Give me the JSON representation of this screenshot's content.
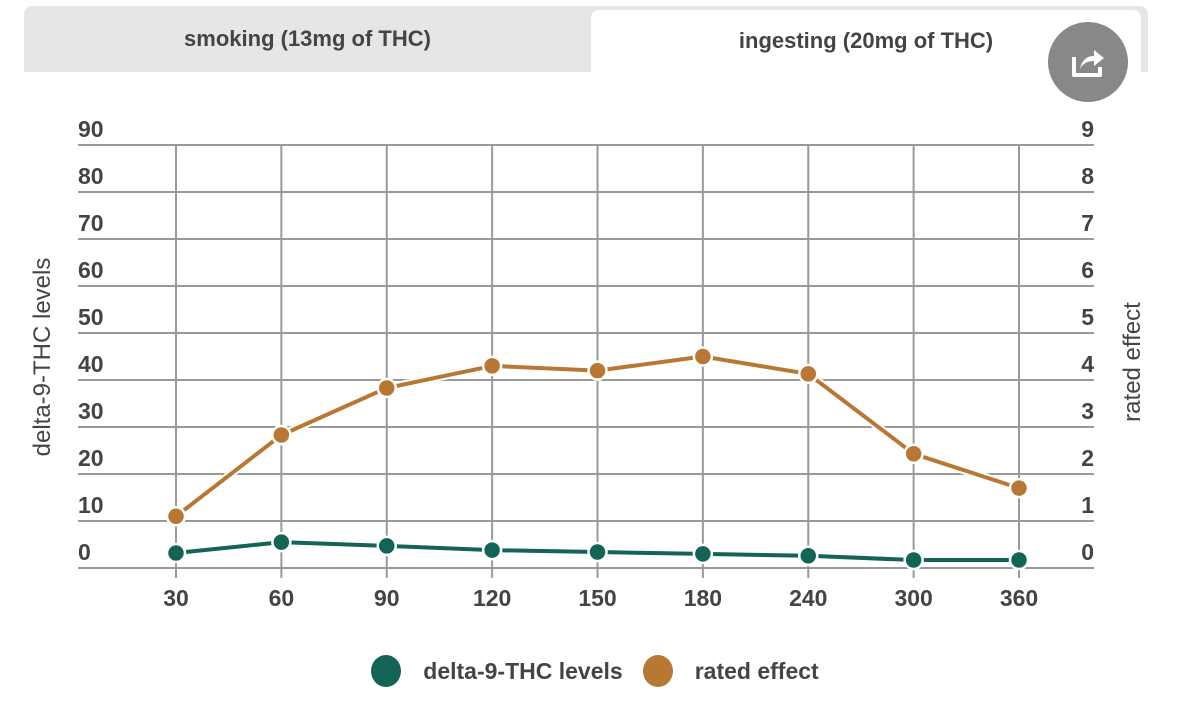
{
  "tabs": [
    {
      "label": "smoking (13mg of THC)",
      "active": false
    },
    {
      "label": "ingesting (20mg of THC)",
      "active": true
    }
  ],
  "share_button": {
    "icon": "share-icon"
  },
  "colors": {
    "thc": "#136357",
    "effect": "#b87733",
    "grid": "#999999",
    "tab_bg": "#e6e6e6",
    "share_bg": "#888888"
  },
  "chart_data": {
    "type": "line",
    "x": [
      30,
      60,
      90,
      120,
      150,
      180,
      240,
      300,
      360
    ],
    "x_tick_labels": [
      "30",
      "60",
      "90",
      "120",
      "150",
      "180",
      "240",
      "300",
      "360"
    ],
    "xlabel": "",
    "y_left": {
      "label": "delta-9-THC levels",
      "range": [
        0,
        90
      ],
      "ticks": [
        "0",
        "10",
        "20",
        "30",
        "40",
        "50",
        "60",
        "70",
        "80",
        "90"
      ]
    },
    "y_right": {
      "label": "rated effect",
      "range": [
        0,
        9
      ],
      "ticks": [
        "0",
        "1",
        "2",
        "3",
        "4",
        "5",
        "6",
        "7",
        "8",
        "9"
      ]
    },
    "grid": true,
    "legend_position": "bottom",
    "series": [
      {
        "name": "delta-9-THC levels",
        "axis": "left",
        "values": [
          3.2,
          5.5,
          4.7,
          3.8,
          3.4,
          3.0,
          2.6,
          1.7,
          1.7
        ]
      },
      {
        "name": "rated effect",
        "axis": "right",
        "values": [
          1.1,
          2.83,
          3.83,
          4.3,
          4.2,
          4.5,
          4.13,
          2.43,
          1.7
        ]
      }
    ]
  }
}
